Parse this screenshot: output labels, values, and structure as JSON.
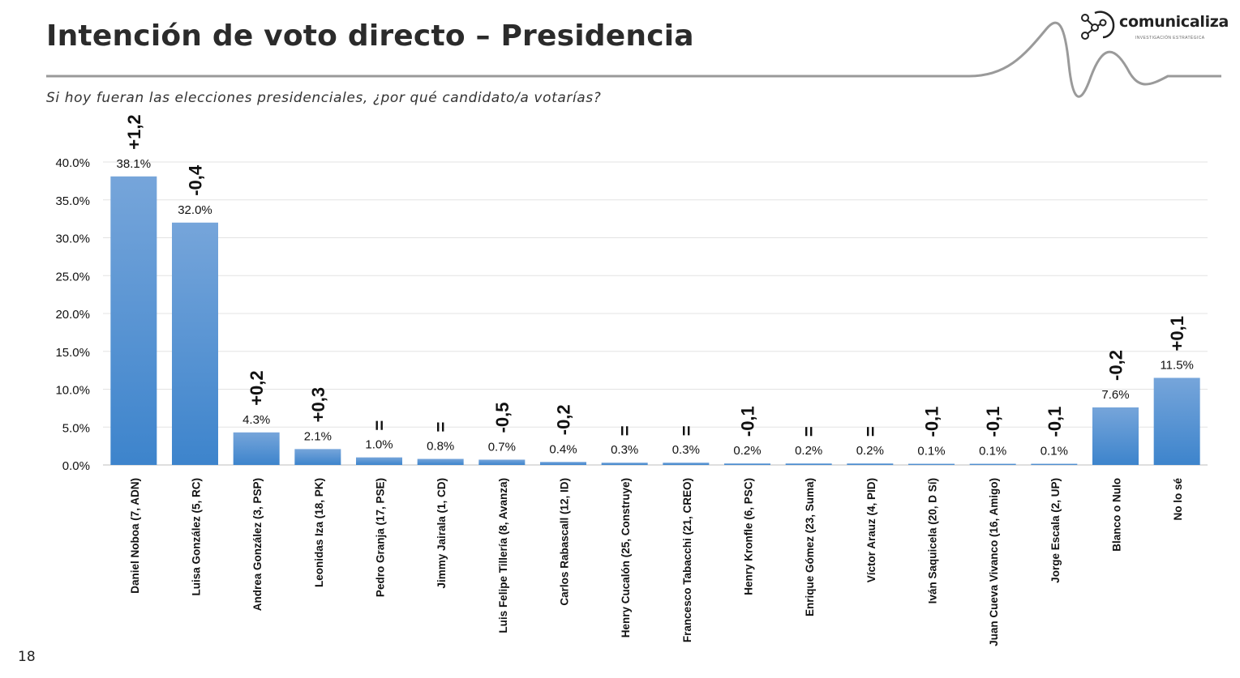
{
  "slide": {
    "title": "Intención de voto directo – Presidencia",
    "subtitle": "Si hoy fueran las elecciones presidenciales, ¿por qué candidato/a votarías?",
    "page_number": "18"
  },
  "logo": {
    "name": "comunicaliza",
    "tagline": "INVESTIGACIÓN ESTRATÉGICA"
  },
  "colors": {
    "bar_top": "#76a5da",
    "bar_bottom": "#3d84cc",
    "grid": "#e3e3e3",
    "axis": "#bfbfbf",
    "wave": "#9a9a9a",
    "text": "#111111"
  },
  "chart_data": {
    "type": "bar",
    "title": "",
    "xlabel": "",
    "ylabel": "",
    "ylim": [
      0,
      40
    ],
    "yticks": [
      "0.0%",
      "5.0%",
      "10.0%",
      "15.0%",
      "20.0%",
      "25.0%",
      "30.0%",
      "35.0%",
      "40.0%"
    ],
    "grid": true,
    "categories": [
      "Daniel Noboa (7, ADN)",
      "Luisa González (5, RC)",
      "Andrea González (3, PSP)",
      "Leonidas Iza (18, PK)",
      "Pedro Granja (17, PSE)",
      "Jimmy Jairala (1, CD)",
      "Luis Felipe Tillería (8, Avanza)",
      "Carlos Rabascall (12, ID)",
      "Henry Cucalón (25, Construye)",
      "Francesco Tabacchi (21, CREO)",
      "Henry Kronfle (6, PSC)",
      "Enrique Gómez (23, Suma)",
      "Víctor Arauz (4, PID)",
      "Iván Saquicela (20, D Sí)",
      "Juan Cueva Vivanco (16, Amigo)",
      "Jorge Escala (2, UP)",
      "Blanco o Nulo",
      "No lo sé"
    ],
    "values": [
      38.1,
      32.0,
      4.3,
      2.1,
      1.0,
      0.8,
      0.7,
      0.4,
      0.3,
      0.3,
      0.2,
      0.2,
      0.2,
      0.1,
      0.1,
      0.1,
      7.6,
      11.5
    ],
    "data_labels": [
      "38.1%",
      "32.0%",
      "4.3%",
      "2.1%",
      "1.0%",
      "0.8%",
      "0.7%",
      "0.4%",
      "0.3%",
      "0.3%",
      "0.2%",
      "0.2%",
      "0.2%",
      "0.1%",
      "0.1%",
      "0.1%",
      "7.6%",
      "11.5%"
    ],
    "changes": [
      "+1,2",
      "-0,4",
      "+0,2",
      "+0,3",
      "=",
      "=",
      "-0,5",
      "-0,2",
      "=",
      "=",
      "-0,1",
      "=",
      "=",
      "-0,1",
      "-0,1",
      "-0,1",
      "-0,2",
      "+0,1"
    ]
  }
}
